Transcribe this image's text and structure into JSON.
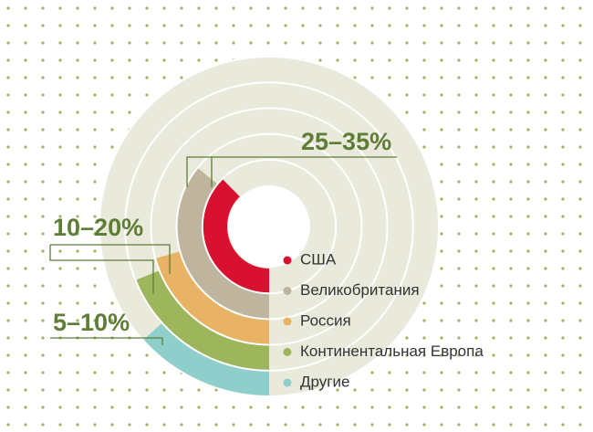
{
  "chart_data": {
    "type": "radial_bar",
    "categories": [
      "США",
      "Великобритания",
      "Россия",
      "Континентальная Европа",
      "Другие"
    ],
    "values": [
      35,
      33.4,
      19.2,
      17.6,
      12.4
    ],
    "colors": [
      "#d7112f",
      "#bfb59f",
      "#e9b366",
      "#9db65b",
      "#8fcfcb"
    ],
    "vlim": [
      0,
      93
    ],
    "annotations": [
      "25–35%",
      "10–20%",
      "5–10%"
    ]
  }
}
